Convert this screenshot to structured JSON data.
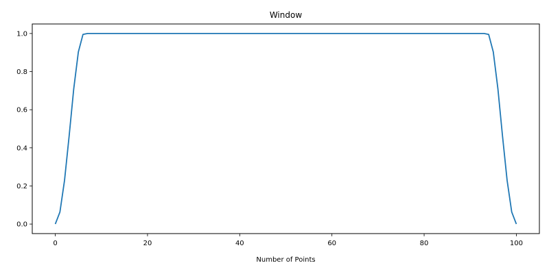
{
  "chart_data": {
    "type": "line",
    "title": "Window",
    "xlabel": "Number of Points",
    "ylabel": "",
    "xlim": [
      -5,
      105
    ],
    "ylim": [
      -0.05,
      1.05
    ],
    "xticks": [
      0,
      20,
      40,
      60,
      80,
      100
    ],
    "yticks": [
      "0.0",
      "0.2",
      "0.4",
      "0.6",
      "0.8",
      "1.0"
    ],
    "grid": false,
    "line_color": "#1f77b4",
    "series": [
      {
        "x": [
          0,
          1,
          2,
          3,
          4,
          5,
          6,
          7,
          8,
          93,
          94,
          95,
          96,
          97,
          98,
          99,
          100
        ],
        "y": [
          0.0,
          0.063,
          0.229,
          0.462,
          0.71,
          0.903,
          0.995,
          1.0,
          1.0,
          1.0,
          0.995,
          0.903,
          0.71,
          0.462,
          0.229,
          0.063,
          0.0
        ]
      }
    ]
  }
}
